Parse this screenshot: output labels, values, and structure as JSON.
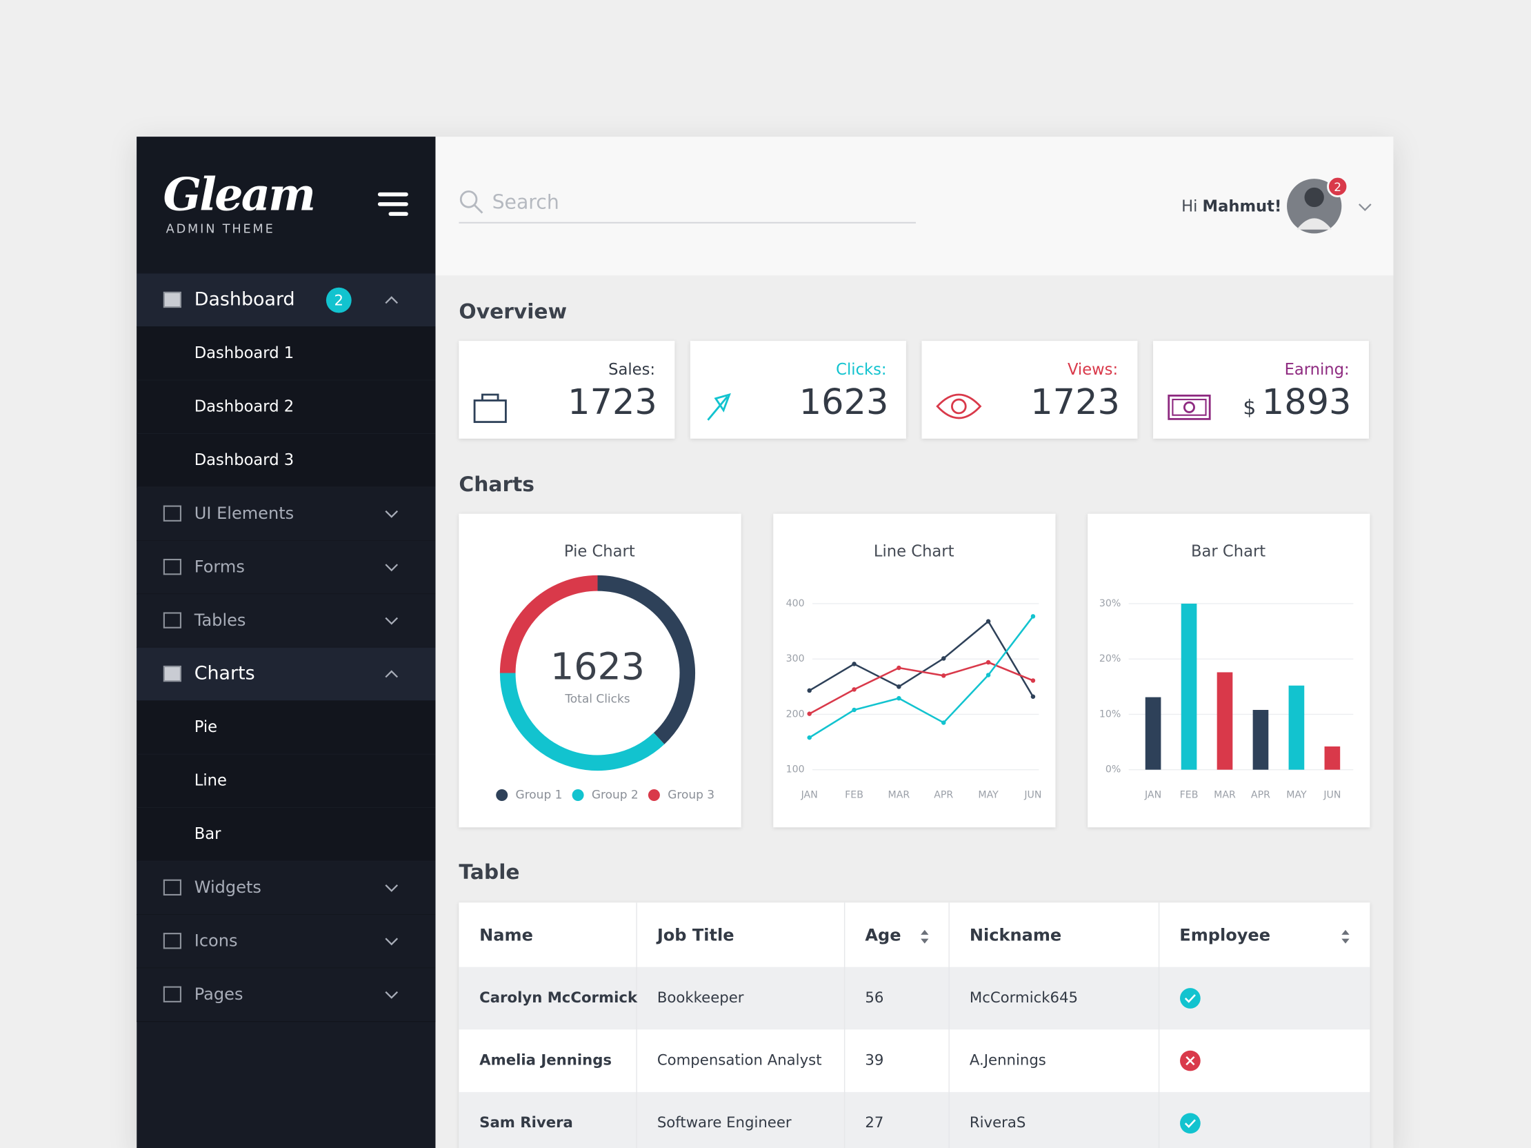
{
  "sidebar": {
    "logo": "Gleam",
    "tagline": "ADMIN THEME",
    "menu": [
      {
        "label": "Dashboard",
        "badge": "2",
        "children": [
          "Dashboard 1",
          "Dashboard 2",
          "Dashboard 3"
        ]
      },
      {
        "label": "UI Elements"
      },
      {
        "label": "Forms"
      },
      {
        "label": "Tables"
      },
      {
        "label": "Charts",
        "children": [
          "Pie",
          "Line",
          "Bar"
        ]
      },
      {
        "label": "Widgets"
      },
      {
        "label": "Icons"
      },
      {
        "label": "Pages"
      }
    ]
  },
  "header": {
    "search_placeholder": "Search",
    "greeting": "Hi",
    "user": "Mahmut!",
    "notifications": "2"
  },
  "overview": {
    "title": "Overview",
    "cards": [
      {
        "label": "Sales:",
        "value": "1723",
        "color": "#333a45"
      },
      {
        "label": "Clicks:",
        "value": "1623",
        "color": "#12c3cf"
      },
      {
        "label": "Views:",
        "value": "1723",
        "color": "#d9394a"
      },
      {
        "label": "Earning:",
        "currency": "$",
        "value": "1893",
        "color": "#8e2a80"
      }
    ]
  },
  "charts_title": "Charts",
  "chart_data": [
    {
      "type": "pie",
      "title": "Pie Chart",
      "center_value": "1623",
      "center_label": "Total Clicks",
      "categories": [
        "Group 1",
        "Group 2",
        "Group 3"
      ],
      "values": [
        38,
        37,
        25
      ],
      "colors": [
        "#2e4159",
        "#12c3cf",
        "#d9394a"
      ]
    },
    {
      "type": "line",
      "title": "Line Chart",
      "categories": [
        "JAN",
        "FEB",
        "MAR",
        "APR",
        "MAY",
        "JUN"
      ],
      "series": [
        {
          "color": "#2e4159",
          "values": [
            243,
            291,
            250,
            301,
            368,
            232
          ]
        },
        {
          "color": "#d9394a",
          "values": [
            201,
            245,
            284,
            270,
            294,
            261
          ]
        },
        {
          "color": "#12c3cf",
          "values": [
            158,
            208,
            229,
            185,
            271,
            377
          ]
        }
      ],
      "ylim": [
        100,
        400
      ],
      "yticks": [
        100,
        200,
        300,
        400
      ],
      "grid": true
    },
    {
      "type": "bar",
      "title": "Bar Chart",
      "categories": [
        "JAN",
        "FEB",
        "MAR",
        "APR",
        "MAY",
        "JUN"
      ],
      "values": [
        13.1,
        30,
        17.6,
        10.8,
        15.2,
        4.2
      ],
      "colors": [
        "#2e4159",
        "#12c3cf",
        "#d9394a",
        "#2e4159",
        "#12c3cf",
        "#d9394a"
      ],
      "ylim": [
        0,
        30
      ],
      "yticks": [
        {
          "value": 0,
          "label": "0%"
        },
        {
          "value": 10,
          "label": "10%"
        },
        {
          "value": 20,
          "label": "20%"
        },
        {
          "value": 30,
          "label": "30%"
        }
      ],
      "grid": true
    }
  ],
  "table": {
    "title": "Table",
    "columns": [
      "Name",
      "Job Title",
      "Age",
      "Nickname",
      "Employee"
    ],
    "sortable": [
      false,
      false,
      true,
      false,
      true
    ],
    "rows": [
      [
        "Carolyn McCormick",
        "Bookkeeper",
        56,
        "McCormick645"
      ],
      [
        "Amelia Jennings",
        "Compensation Analyst",
        39,
        "A.Jennings"
      ],
      [
        "Sam Rivera",
        "Software Engineer",
        27,
        "RiveraS"
      ]
    ],
    "employee": [
      true,
      false,
      true
    ]
  }
}
